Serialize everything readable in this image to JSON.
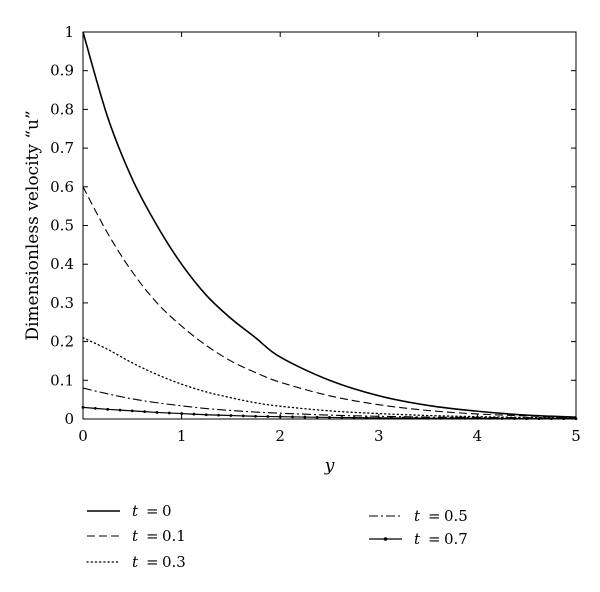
{
  "chart_data": {
    "type": "line",
    "xlabel": "y",
    "ylabel": "Dimensionless velocity “u”",
    "xlim": [
      0,
      5
    ],
    "ylim": [
      0,
      1
    ],
    "x_ticks": [
      "0",
      "1",
      "2",
      "3",
      "4",
      "5"
    ],
    "y_ticks": [
      "0",
      "0.1",
      "0.2",
      "0.3",
      "0.4",
      "0.5",
      "0.6",
      "0.7",
      "0.8",
      "0.9",
      "1"
    ],
    "grid": false,
    "legend_position": "bottom",
    "x": [
      0,
      0.25,
      0.5,
      0.75,
      1,
      1.25,
      1.5,
      1.75,
      2,
      2.5,
      3,
      3.5,
      4,
      4.5,
      5
    ],
    "series": [
      {
        "legend_var": "t",
        "legend_value": "0",
        "style": "solid",
        "values": [
          1.0,
          0.78,
          0.62,
          0.5,
          0.4,
          0.32,
          0.26,
          0.21,
          0.16,
          0.1,
          0.06,
          0.035,
          0.02,
          0.01,
          0.005
        ]
      },
      {
        "legend_var": "t",
        "legend_value": "0.1",
        "style": "dashed",
        "values": [
          0.6,
          0.48,
          0.38,
          0.3,
          0.24,
          0.19,
          0.15,
          0.12,
          0.095,
          0.06,
          0.037,
          0.022,
          0.013,
          0.008,
          0.004
        ]
      },
      {
        "legend_var": "t",
        "legend_value": "0.3",
        "style": "dotted",
        "values": [
          0.21,
          0.18,
          0.145,
          0.115,
          0.09,
          0.07,
          0.055,
          0.042,
          0.033,
          0.021,
          0.014,
          0.009,
          0.006,
          0.004,
          0.003
        ]
      },
      {
        "legend_var": "t",
        "legend_value": "0.5",
        "style": "dashdot",
        "values": [
          0.08,
          0.065,
          0.052,
          0.042,
          0.034,
          0.027,
          0.022,
          0.018,
          0.015,
          0.01,
          0.007,
          0.005,
          0.004,
          0.003,
          0.002
        ]
      },
      {
        "legend_var": "t",
        "legend_value": "0.7",
        "style": "marker",
        "values": [
          0.03,
          0.025,
          0.021,
          0.017,
          0.014,
          0.011,
          0.009,
          0.007,
          0.006,
          0.004,
          0.003,
          0.002,
          0.002,
          0.001,
          0.001
        ]
      }
    ]
  }
}
